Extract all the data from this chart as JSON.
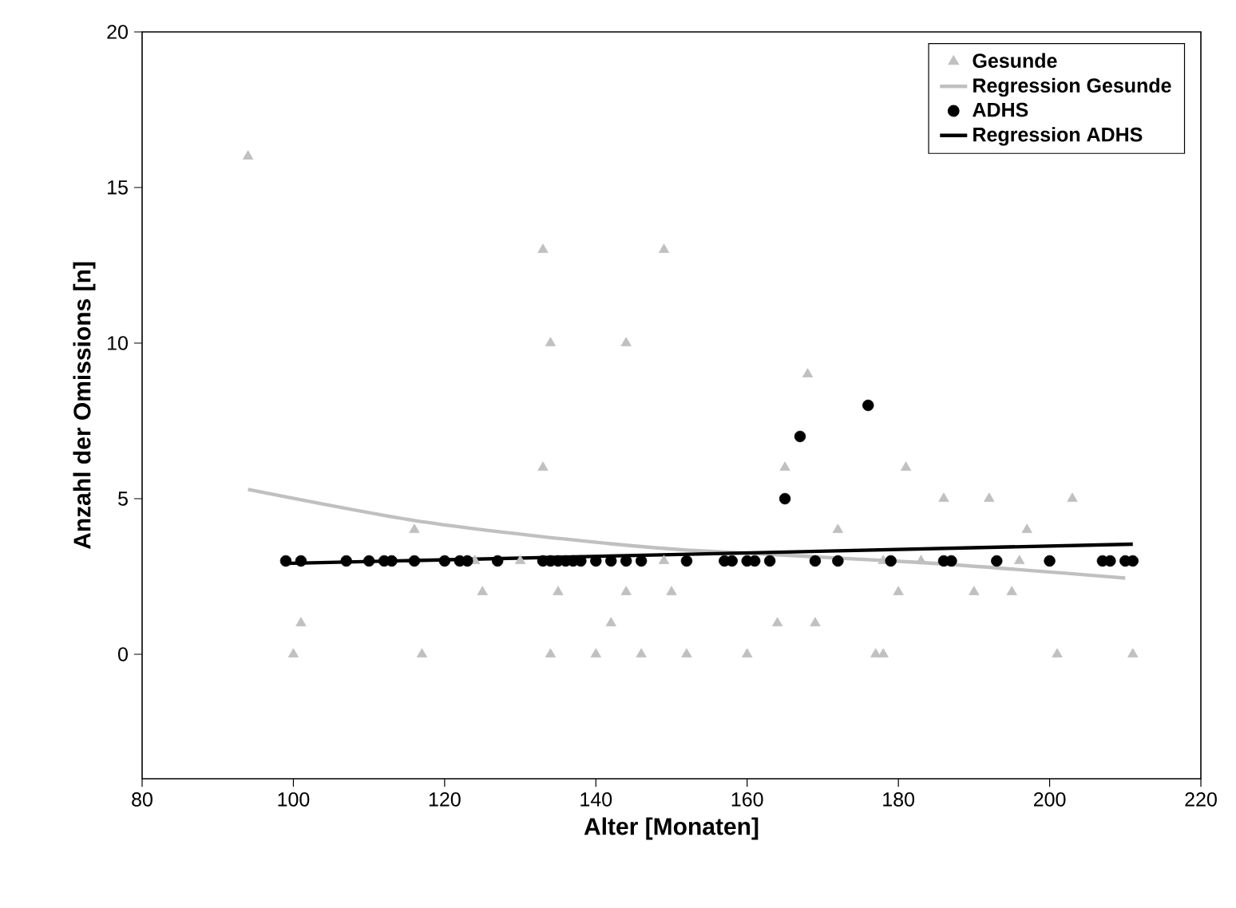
{
  "chart_data": {
    "type": "scatter",
    "xlabel": "Alter [Monaten]",
    "ylabel": "Anzahl der Omissions [n]",
    "xlim": [
      80,
      220
    ],
    "xticks": [
      80,
      100,
      120,
      140,
      160,
      180,
      200,
      220
    ],
    "ylim": [
      -4,
      20
    ],
    "yticks": [
      0,
      5,
      10,
      15,
      20
    ],
    "grid": false,
    "legend": "top right",
    "series": [
      {
        "name": "Gesunde",
        "marker": "triangle",
        "color": "#c0c0c0",
        "x": [
          94,
          100,
          101,
          116,
          117,
          124,
          125,
          130,
          133,
          133,
          134,
          134,
          135,
          140,
          142,
          144,
          144,
          146,
          149,
          149,
          150,
          152,
          160,
          164,
          165,
          168,
          169,
          172,
          177,
          178,
          178,
          180,
          181,
          183,
          186,
          190,
          192,
          195,
          196,
          197,
          201,
          203,
          211
        ],
        "values": [
          16,
          0,
          1,
          4,
          0,
          3,
          2,
          3,
          13,
          6,
          10,
          0,
          2,
          0,
          1,
          10,
          2,
          0,
          13,
          3,
          2,
          0,
          0,
          1,
          6,
          9,
          1,
          4,
          0,
          0,
          3,
          2,
          6,
          3,
          5,
          2,
          5,
          2,
          3,
          4,
          0,
          5,
          0
        ]
      },
      {
        "name": "Regression Gesunde",
        "type": "line",
        "marker": "none",
        "color": "#c0c0c0",
        "x": [
          94,
          116,
          136,
          152,
          183,
          210
        ],
        "values": [
          5.3,
          4.3,
          3.7,
          3.35,
          2.95,
          2.45
        ]
      },
      {
        "name": "ADHS",
        "marker": "circle",
        "color": "#000000",
        "x": [
          99,
          101,
          107,
          110,
          112,
          113,
          116,
          120,
          122,
          123,
          127,
          133,
          134,
          135,
          136,
          137,
          138,
          140,
          142,
          144,
          146,
          152,
          157,
          158,
          160,
          161,
          163,
          165,
          167,
          169,
          172,
          176,
          179,
          186,
          187,
          193,
          200,
          207,
          208,
          210,
          211
        ],
        "values": [
          3,
          3,
          3,
          3,
          3,
          3,
          3,
          3,
          3,
          3,
          3,
          3,
          3,
          3,
          3,
          3,
          3,
          3,
          3,
          3,
          3,
          3,
          3,
          3,
          3,
          3,
          3,
          5,
          7,
          3,
          3,
          8,
          3,
          3,
          3,
          3,
          3,
          3,
          3,
          3,
          3
        ]
      },
      {
        "name": "Regression ADHS",
        "type": "line",
        "marker": "none",
        "color": "#000000",
        "x": [
          99,
          211
        ],
        "values": [
          2.92,
          3.54
        ]
      }
    ]
  }
}
